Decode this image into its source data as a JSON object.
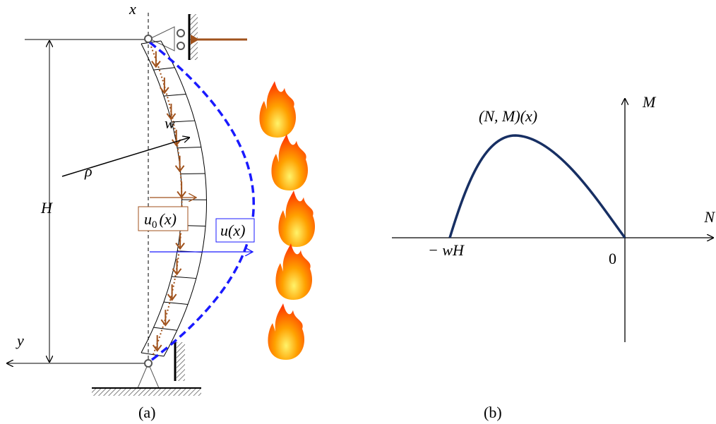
{
  "panel_a": {
    "axis_x": "x",
    "axis_y": "y",
    "load": "w",
    "radius": "ρ",
    "height": "H",
    "initial_deflection": {
      "symbol": "u",
      "subscript": "0",
      "argument": "(x)"
    },
    "deflection": "u(x)",
    "caption": "(a)"
  },
  "panel_b": {
    "curve_label": "(N, M)(x)",
    "axis_m": "M",
    "axis_n": "N",
    "intercept": "− wH",
    "origin": "0",
    "caption": "(b)"
  }
}
